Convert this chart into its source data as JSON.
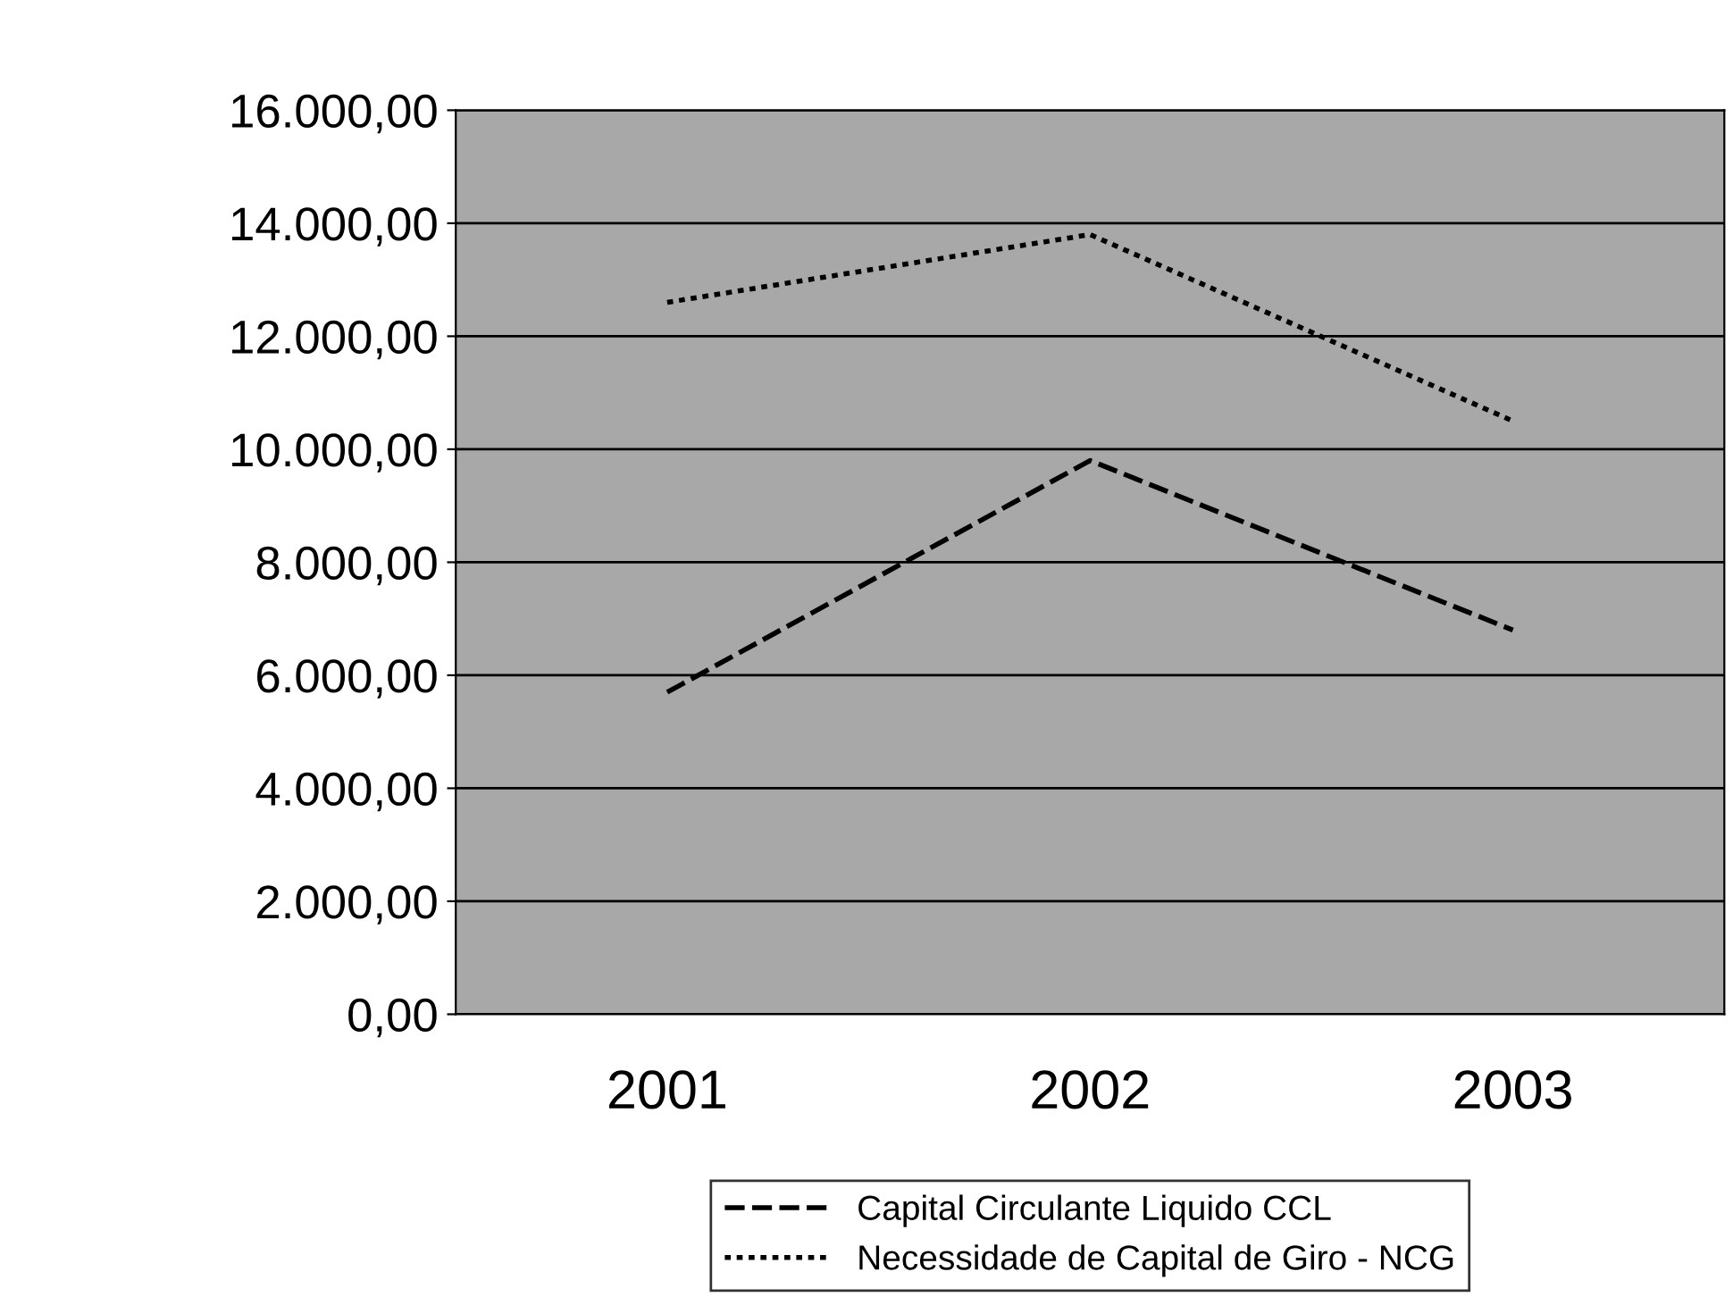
{
  "chart_data": {
    "type": "line",
    "categories": [
      "2001",
      "2002",
      "2003"
    ],
    "series": [
      {
        "name": "Capital Circulante Liquido CCL",
        "color": "#000000",
        "line_style": "dashed",
        "values": [
          5700,
          9800,
          6800
        ]
      },
      {
        "name": "Necessidade de Capital de Giro - NCG",
        "color": "#000000",
        "line_style": "dotted",
        "values": [
          12600,
          13800,
          10500
        ]
      }
    ],
    "ylim": [
      0,
      16000
    ],
    "yticks": [
      {
        "value": 0,
        "label": "0,00"
      },
      {
        "value": 2000,
        "label": "2.000,00"
      },
      {
        "value": 4000,
        "label": "4.000,00"
      },
      {
        "value": 6000,
        "label": "6.000,00"
      },
      {
        "value": 8000,
        "label": "8.000,00"
      },
      {
        "value": 10000,
        "label": "10.000,00"
      },
      {
        "value": 12000,
        "label": "12.000,00"
      },
      {
        "value": 14000,
        "label": "14.000,00"
      },
      {
        "value": 16000,
        "label": "16.000,00"
      }
    ],
    "grid": "y",
    "legend": "bottom",
    "marker": "none"
  }
}
